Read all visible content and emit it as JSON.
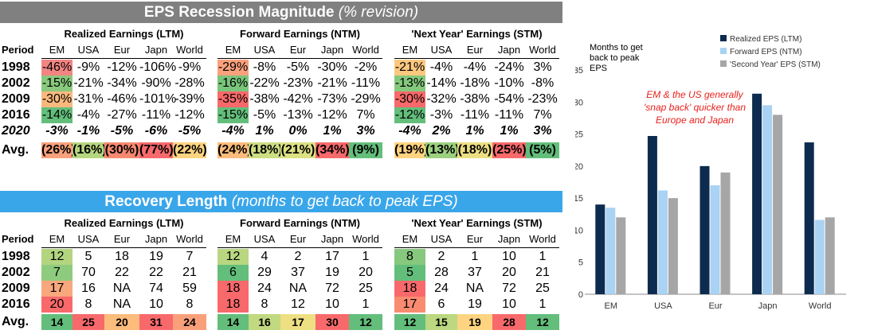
{
  "magnitude": {
    "title": "EPS Recession Magnitude",
    "subtitle": "(% revision)",
    "groups": [
      "Realized Earnings (LTM)",
      "Forward Earnings (NTM)",
      "'Next Year' Earnings (STM)"
    ],
    "period_label": "Period",
    "columns": [
      "EM",
      "USA",
      "Eur",
      "Japn",
      "World"
    ],
    "rows": [
      {
        "period": "1998",
        "groups": [
          [
            "-46%",
            "-9%",
            "-12%",
            "-106%",
            "-9%"
          ],
          [
            "-29%",
            "-8%",
            "-5%",
            "-30%",
            "-2%"
          ],
          [
            "-21%",
            "-4%",
            "-4%",
            "-24%",
            "3%"
          ]
        ]
      },
      {
        "period": "2002",
        "groups": [
          [
            "-15%",
            "-21%",
            "-34%",
            "-90%",
            "-28%"
          ],
          [
            "-16%",
            "-22%",
            "-23%",
            "-21%",
            "-11%"
          ],
          [
            "-13%",
            "-14%",
            "-18%",
            "-10%",
            "-8%"
          ]
        ]
      },
      {
        "period": "2009",
        "groups": [
          [
            "-30%",
            "-31%",
            "-46%",
            "-101%",
            "-39%"
          ],
          [
            "-35%",
            "-38%",
            "-42%",
            "-73%",
            "-29%"
          ],
          [
            "-30%",
            "-32%",
            "-38%",
            "-54%",
            "-23%"
          ]
        ]
      },
      {
        "period": "2016",
        "groups": [
          [
            "-14%",
            "-4%",
            "-27%",
            "-11%",
            "-12%"
          ],
          [
            "-15%",
            "-5%",
            "-13%",
            "-12%",
            "7%"
          ],
          [
            "-12%",
            "-3%",
            "-11%",
            "-11%",
            "7%"
          ]
        ]
      },
      {
        "period": "2020",
        "groups": [
          [
            "-3%",
            "-1%",
            "-5%",
            "-6%",
            "-5%"
          ],
          [
            "-4%",
            "1%",
            "0%",
            "1%",
            "3%"
          ],
          [
            "-4%",
            "2%",
            "1%",
            "1%",
            "3%"
          ]
        ]
      }
    ],
    "avg_label": "Avg.",
    "avg": [
      [
        "(26%)",
        "(16%)",
        "(30%)",
        "(77%)",
        "(22%)"
      ],
      [
        "(24%)",
        "(18%)",
        "(21%)",
        "(34%)",
        "(9%)"
      ],
      [
        "(19%)",
        "(13%)",
        "(18%)",
        "(25%)",
        "(5%)"
      ]
    ],
    "colors": {
      "1998": [
        "#f28582",
        "",
        "",
        "",
        ""
      ],
      "2002": [
        "#8ac97d",
        "",
        "",
        "",
        ""
      ],
      "2009": [
        "#f9b97e",
        "",
        "",
        "",
        ""
      ],
      "2016": [
        "#63be7b",
        "",
        "",
        "",
        ""
      ],
      "f1998": [
        "#f9a17c",
        "",
        "",
        "",
        ""
      ],
      "f2002": [
        "#7ac57c",
        "",
        "",
        "",
        ""
      ],
      "f2009": [
        "#f8696b",
        "",
        "",
        "",
        ""
      ],
      "f2016": [
        "#63be7b",
        "",
        "",
        "",
        ""
      ],
      "n1998": [
        "#fcc87f",
        "",
        "",
        "",
        ""
      ],
      "n2002": [
        "#84c87d",
        "",
        "",
        "",
        ""
      ],
      "n2009": [
        "#f8696b",
        "",
        "",
        "",
        ""
      ],
      "n2016": [
        "#63be7b",
        "",
        "",
        "",
        ""
      ],
      "avg": [
        [
          "#f9a17c",
          "#b5d680",
          "#f8896f",
          "#f8696b",
          "#fed481"
        ],
        [
          "#fcbc7b",
          "#cddd82",
          "#dce182",
          "#f8696b",
          "#63be7b"
        ],
        [
          "#fed481",
          "#9cd07f",
          "#ecdf83",
          "#f8696b",
          "#63be7b"
        ]
      ]
    }
  },
  "recovery": {
    "title": "Recovery Length",
    "subtitle": "(months to get back to peak EPS)",
    "groups": [
      "Realized Earnings (LTM)",
      "Forward Earnings (NTM)",
      "'Next Year' Earnings (STM)"
    ],
    "period_label": "Period",
    "columns": [
      "EM",
      "USA",
      "Eur",
      "Japn",
      "World"
    ],
    "rows": [
      {
        "period": "1998",
        "groups": [
          [
            "12",
            "5",
            "18",
            "19",
            "7"
          ],
          [
            "12",
            "4",
            "2",
            "17",
            "1"
          ],
          [
            "8",
            "2",
            "1",
            "10",
            "1"
          ]
        ]
      },
      {
        "period": "2002",
        "groups": [
          [
            "7",
            "70",
            "22",
            "22",
            "21"
          ],
          [
            "6",
            "29",
            "37",
            "19",
            "20"
          ],
          [
            "5",
            "28",
            "37",
            "20",
            "21"
          ]
        ]
      },
      {
        "period": "2009",
        "groups": [
          [
            "17",
            "16",
            "NA",
            "74",
            "59"
          ],
          [
            "18",
            "24",
            "NA",
            "72",
            "25"
          ],
          [
            "18",
            "24",
            "NA",
            "72",
            "25"
          ]
        ]
      },
      {
        "period": "2016",
        "groups": [
          [
            "20",
            "8",
            "NA",
            "10",
            "8"
          ],
          [
            "18",
            "8",
            "12",
            "10",
            "1"
          ],
          [
            "17",
            "6",
            "19",
            "10",
            "1"
          ]
        ]
      }
    ],
    "avg_label": "Avg.",
    "avg": [
      [
        "14",
        "25",
        "20",
        "31",
        "24"
      ],
      [
        "14",
        "16",
        "17",
        "30",
        "12"
      ],
      [
        "12",
        "15",
        "19",
        "28",
        "12"
      ]
    ],
    "first_col_colors": [
      [
        "#b3d580",
        "#8fcb7e",
        "#f9a77c",
        "#f8696b"
      ],
      [
        "#b8d780",
        "#63be7b",
        "#f8696b",
        "#f8696b"
      ],
      [
        "#86c87d",
        "#63be7b",
        "#f8696b",
        "#f98b71"
      ]
    ],
    "avg_colors": [
      [
        "#63be7b",
        "#f8696b",
        "#fcbc7b",
        "#f8696b",
        "#f9a07b"
      ],
      [
        "#63be7b",
        "#c1d980",
        "#eedf83",
        "#f8696b",
        "#63be7b"
      ],
      [
        "#63be7b",
        "#bcd880",
        "#fed481",
        "#f8696b",
        "#63be7b"
      ]
    ]
  },
  "chart_data": {
    "type": "bar",
    "title": "Months to get back to peak EPS",
    "annotation": [
      "EM & the US generally",
      "'snap back' quicker than",
      "Europe and Japan"
    ],
    "categories": [
      "EM",
      "USA",
      "Eur",
      "Japn",
      "World"
    ],
    "series": [
      {
        "name": "Realized EPS (LTM)",
        "color": "#0d2b4e",
        "values": [
          14,
          24.7,
          20,
          31.3,
          23.7
        ]
      },
      {
        "name": "Forward EPS (NTM)",
        "color": "#a9d2f3",
        "values": [
          13.5,
          16.2,
          17,
          29.5,
          11.6
        ]
      },
      {
        "name": "'Second Year' EPS (STM)",
        "color": "#a6a6a6",
        "values": [
          12,
          15,
          19,
          28,
          12
        ]
      }
    ],
    "ylim": [
      0,
      35
    ],
    "yticks": [
      0,
      5,
      10,
      15,
      20,
      25,
      30,
      35
    ],
    "legend": "top-right",
    "grid": false
  }
}
